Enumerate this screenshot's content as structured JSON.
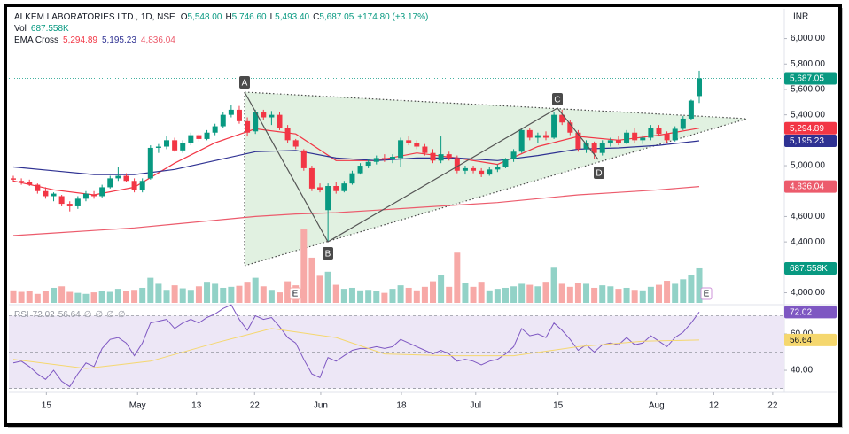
{
  "chart_data": {
    "type": "candlestick",
    "header": {
      "symbol": "ALKEM LABORATORIES LTD., 1D, NSE",
      "ohlc": [
        {
          "label": "O",
          "value": "5,548.00"
        },
        {
          "label": "H",
          "value": "5,746.60"
        },
        {
          "label": "L",
          "value": "5,493.40"
        },
        {
          "label": "C",
          "value": "5,687.05"
        }
      ],
      "change": "+174.80 (+3.17%)",
      "volume_label": "Vol",
      "ema_label": "EMA Cross",
      "rsi_label": "RSI",
      "rsi_extra": [
        "∅",
        "∅",
        "∅",
        "∅"
      ]
    },
    "currency": "INR",
    "up_color": "#089981",
    "down_color": "#f23645",
    "open": [
      4900,
      4880,
      4870,
      4850,
      4800,
      4760,
      4760,
      4700,
      4680,
      4740,
      4770,
      4760,
      4830,
      4900,
      4920,
      4880,
      4810,
      4900,
      5140,
      5150,
      5200,
      5120,
      5180,
      5240,
      5210,
      5260,
      5310,
      5400,
      5440,
      5350,
      5270,
      5420,
      5380,
      5400,
      5300,
      5200,
      5120,
      4980,
      4830,
      4650,
      4840,
      4800,
      4860,
      4940,
      5000,
      5030,
      5060,
      5050,
      5060,
      5200,
      5180,
      5150,
      5100,
      5040,
      5090,
      5060,
      4960,
      4980,
      4960,
      4930,
      4970,
      4990,
      5050,
      5110,
      5280,
      5220,
      5240,
      5220,
      5400,
      5340,
      5260,
      5130,
      5180,
      5100,
      5180,
      5200,
      5180,
      5260,
      5200,
      5220,
      5300,
      5250,
      5200,
      5290,
      5370,
      5548
    ],
    "high": [
      4920,
      4900,
      4890,
      4860,
      4830,
      4790,
      4770,
      4720,
      4760,
      4800,
      4800,
      4850,
      4920,
      4990,
      4940,
      4900,
      4900,
      5160,
      5170,
      5230,
      5220,
      5200,
      5260,
      5250,
      5280,
      5330,
      5420,
      5480,
      5470,
      5380,
      5440,
      5440,
      5430,
      5420,
      5320,
      5210,
      5130,
      5000,
      4860,
      4860,
      4870,
      4880,
      4960,
      5020,
      5050,
      5080,
      5090,
      5090,
      5220,
      5230,
      5200,
      5170,
      5130,
      5230,
      5110,
      5080,
      5000,
      5000,
      4980,
      4990,
      5010,
      5060,
      5130,
      5300,
      5300,
      5260,
      5270,
      5420,
      5440,
      5360,
      5280,
      5200,
      5190,
      5200,
      5220,
      5230,
      5280,
      5300,
      5240,
      5320,
      5320,
      5270,
      5310,
      5390,
      5520,
      5746.6
    ],
    "low": [
      4870,
      4850,
      4840,
      4780,
      4740,
      4720,
      4680,
      4640,
      4660,
      4720,
      4740,
      4750,
      4820,
      4880,
      4870,
      4790,
      4790,
      4890,
      5100,
      5130,
      5110,
      5100,
      5160,
      5190,
      5200,
      5240,
      5300,
      5380,
      5330,
      5230,
      5250,
      5360,
      5320,
      5280,
      5180,
      5130,
      4960,
      4800,
      4790,
      4400,
      4780,
      4790,
      4850,
      4930,
      4980,
      5010,
      5030,
      5020,
      4990,
      5160,
      5130,
      5080,
      5020,
      5020,
      5040,
      4940,
      4930,
      4940,
      4910,
      4920,
      4950,
      4980,
      5030,
      5100,
      5200,
      5180,
      5200,
      5210,
      5320,
      5240,
      5110,
      5100,
      5050,
      5080,
      5150,
      5160,
      5170,
      5180,
      5170,
      5200,
      5230,
      5180,
      5190,
      5280,
      5360,
      5493.4
    ],
    "close": [
      4890,
      4870,
      4850,
      4800,
      4760,
      4780,
      4700,
      4680,
      4740,
      4780,
      4760,
      4830,
      4900,
      4920,
      4880,
      4810,
      4880,
      5140,
      5150,
      5200,
      5120,
      5180,
      5240,
      5210,
      5260,
      5310,
      5400,
      5440,
      5350,
      5260,
      5420,
      5380,
      5400,
      5300,
      5200,
      5150,
      4980,
      4820,
      4810,
      4840,
      4800,
      4860,
      4940,
      5000,
      5030,
      5060,
      5050,
      5070,
      5200,
      5180,
      5150,
      5100,
      5040,
      5090,
      5060,
      4960,
      4980,
      4960,
      4930,
      4970,
      4990,
      5050,
      5110,
      5280,
      5220,
      5240,
      5220,
      5400,
      5340,
      5260,
      5130,
      5180,
      5100,
      5180,
      5200,
      5180,
      5260,
      5200,
      5220,
      5300,
      5250,
      5200,
      5290,
      5370,
      5512.25,
      5687.05
    ],
    "close_label": "5,687.05",
    "ylim": [
      3920,
      6220
    ],
    "yticks": [
      {
        "value": 4000,
        "label": "4,000.00"
      },
      {
        "value": 4400,
        "label": "4,400.00"
      },
      {
        "value": 4600,
        "label": "4,600.00"
      },
      {
        "value": 5000,
        "label": "5,000.00"
      },
      {
        "value": 5400,
        "label": "5,400.00"
      },
      {
        "value": 5600,
        "label": "5,600.00"
      },
      {
        "value": 5800,
        "label": "5,800.00"
      },
      {
        "value": 6000,
        "label": "6,000.00"
      }
    ],
    "xticks": [
      {
        "value": 4.1,
        "label": "15"
      },
      {
        "value": 15.4,
        "label": "May"
      },
      {
        "value": 22.7,
        "label": "13"
      },
      {
        "value": 29.9,
        "label": "22"
      },
      {
        "value": 38.1,
        "label": "Jun"
      },
      {
        "value": 48.1,
        "label": "18"
      },
      {
        "value": 57.3,
        "label": "Jul"
      },
      {
        "value": 67.5,
        "label": "15"
      },
      {
        "value": 79.7,
        "label": "Aug"
      },
      {
        "value": 86.8,
        "label": "12"
      },
      {
        "value": 94.1,
        "label": "22"
      }
    ],
    "volume": {
      "values": [
        250000,
        220000,
        230000,
        180000,
        240000,
        300000,
        330000,
        220000,
        200000,
        180000,
        210000,
        240000,
        220000,
        280000,
        230000,
        260000,
        300000,
        500000,
        380000,
        260000,
        350000,
        290000,
        260000,
        330000,
        420000,
        380000,
        300000,
        320000,
        340000,
        420000,
        500000,
        330000,
        260000,
        210000,
        430000,
        350000,
        1480000,
        900000,
        540000,
        620000,
        360000,
        280000,
        300000,
        250000,
        260000,
        230000,
        200000,
        280000,
        350000,
        300000,
        250000,
        320000,
        430000,
        560000,
        320000,
        1000000,
        390000,
        320000,
        420000,
        250000,
        280000,
        300000,
        330000,
        380000,
        360000,
        330000,
        420000,
        700000,
        380000,
        320000,
        400000,
        380000,
        300000,
        350000,
        330000,
        280000,
        300000,
        260000,
        250000,
        320000,
        360000,
        440000,
        380000,
        470000,
        560000,
        687558
      ],
      "value_label": "687.558K",
      "up_color": "#92d2c7",
      "down_color": "#f7a9a7"
    },
    "series": [
      {
        "color": "#f23645",
        "x": [
          0,
          5,
          10,
          15,
          20,
          25,
          30,
          35,
          40,
          45,
          50,
          55,
          60,
          65,
          70,
          75,
          80,
          85
        ],
        "values": [
          4880,
          4810,
          4770,
          4830,
          5020,
          5180,
          5290,
          5250,
          5040,
          5040,
          5100,
          5060,
          5010,
          5150,
          5230,
          5200,
          5240,
          5294.89
        ],
        "value_label": "5,294.89"
      },
      {
        "color": "#2e3192",
        "x": [
          0,
          5,
          10,
          15,
          20,
          25,
          30,
          35,
          40,
          45,
          50,
          55,
          60,
          65,
          70,
          75,
          80,
          85
        ],
        "values": [
          4990,
          4960,
          4930,
          4930,
          4970,
          5040,
          5110,
          5120,
          5060,
          5040,
          5060,
          5060,
          5040,
          5080,
          5130,
          5140,
          5160,
          5195.23
        ],
        "value_label": "5,195.23"
      },
      {
        "color": "#ec5b6c",
        "x": [
          0,
          5,
          10,
          15,
          20,
          25,
          30,
          35,
          40,
          45,
          50,
          55,
          60,
          65,
          70,
          75,
          80,
          85
        ],
        "values": [
          4450,
          4470,
          4490,
          4510,
          4540,
          4570,
          4600,
          4620,
          4630,
          4650,
          4670,
          4690,
          4710,
          4740,
          4770,
          4790,
          4810,
          4836.04
        ],
        "value_label": "4,836.04"
      }
    ],
    "rsi": {
      "values": [
        44,
        45,
        42,
        38,
        35,
        40,
        34,
        31,
        38,
        44,
        42,
        52,
        57,
        58,
        55,
        48,
        55,
        66,
        67,
        68,
        63,
        66,
        68,
        66,
        69,
        71,
        74,
        76,
        68,
        62,
        70,
        68,
        69,
        64,
        58,
        55,
        46,
        38,
        36,
        47,
        45,
        48,
        51,
        52,
        52,
        53,
        52,
        53,
        57,
        55,
        53,
        51,
        49,
        51,
        49,
        45,
        46,
        45,
        43,
        45,
        46,
        49,
        53,
        63,
        59,
        60,
        58,
        66,
        62,
        57,
        51,
        54,
        50,
        54,
        55,
        54,
        58,
        54,
        55,
        59,
        56,
        53,
        58,
        61,
        66,
        72.02
      ],
      "value_label": "72.02",
      "color": "#7e57c2",
      "ylim": [
        29.3,
        75.6
      ],
      "yticks": [
        {
          "value": 40,
          "label": "40.00"
        },
        {
          "value": 60,
          "label": "60.00"
        }
      ],
      "levels": [
        70,
        50,
        30
      ],
      "ma": {
        "x": [
          0,
          9,
          17,
          25,
          32,
          40,
          46,
          54,
          62,
          70,
          78,
          85
        ],
        "values": [
          46,
          41,
          45,
          55,
          63,
          58,
          49,
          48,
          48,
          53,
          56,
          56.64
        ],
        "value_label": "56.64",
        "color": "#f5d76e"
      }
    },
    "annotations": {
      "points": [
        "A",
        "B",
        "C",
        "D"
      ],
      "events": [
        "E",
        "E"
      ]
    }
  }
}
